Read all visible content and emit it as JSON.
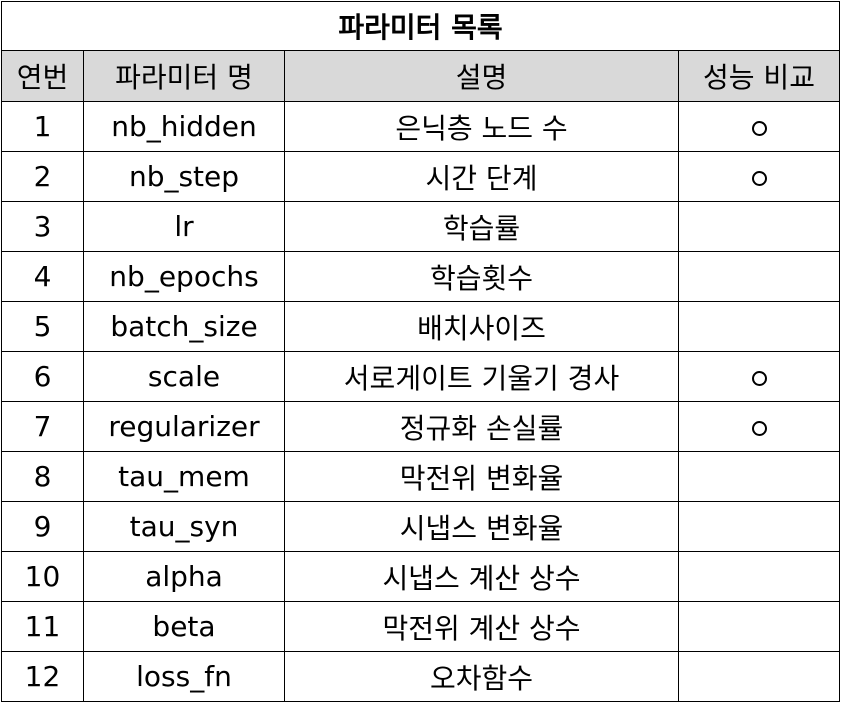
{
  "title": "파라미터 목록",
  "headers": {
    "no": "연번",
    "name": "파라미터 명",
    "description": "설명",
    "comparison": "성능 비교"
  },
  "rows": [
    {
      "no": "1",
      "name": "nb_hidden",
      "description": "은닉층 노드 수",
      "compared": true
    },
    {
      "no": "2",
      "name": "nb_step",
      "description": "시간 단계",
      "compared": true
    },
    {
      "no": "3",
      "name": "lr",
      "description": "학습률",
      "compared": false
    },
    {
      "no": "4",
      "name": "nb_epochs",
      "description": "학습횟수",
      "compared": false
    },
    {
      "no": "5",
      "name": "batch_size",
      "description": "배치사이즈",
      "compared": false
    },
    {
      "no": "6",
      "name": "scale",
      "description": "서로게이트 기울기 경사",
      "compared": true
    },
    {
      "no": "7",
      "name": "regularizer",
      "description": "정규화 손실률",
      "compared": true
    },
    {
      "no": "8",
      "name": "tau_mem",
      "description": "막전위 변화율",
      "compared": false
    },
    {
      "no": "9",
      "name": "tau_syn",
      "description": "시냅스 변화율",
      "compared": false
    },
    {
      "no": "10",
      "name": "alpha",
      "description": "시냅스 계산 상수",
      "compared": false
    },
    {
      "no": "11",
      "name": "beta",
      "description": "막전위 계산 상수",
      "compared": false
    },
    {
      "no": "12",
      "name": "loss_fn",
      "description": "오차함수",
      "compared": false
    }
  ],
  "colors": {
    "header_bg": "#d9d9d9",
    "border": "#000000"
  },
  "icons": {
    "compared_mark": "circle-icon"
  }
}
